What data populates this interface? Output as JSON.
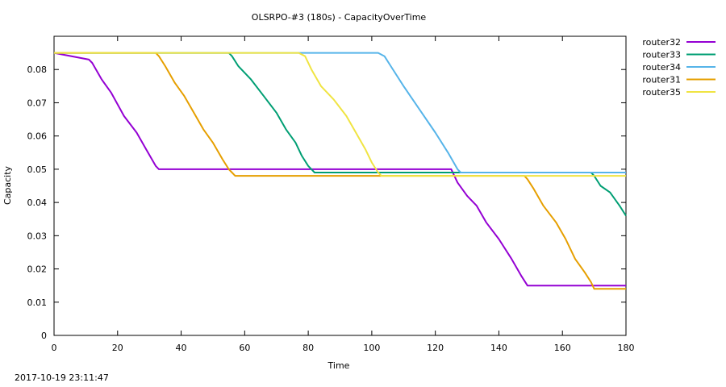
{
  "footer": {
    "timestamp": "2017-10-19 23:11:47"
  },
  "chart_data": {
    "type": "line",
    "title": "OLSRPO-#3 (180s) - CapacityOverTime",
    "xlabel": "Time",
    "ylabel": "Capacity",
    "xlim": [
      0,
      180
    ],
    "ylim": [
      0,
      0.09
    ],
    "xticks": [
      0,
      20,
      40,
      60,
      80,
      100,
      120,
      140,
      160,
      180
    ],
    "yticks": [
      0,
      0.01,
      0.02,
      0.03,
      0.04,
      0.05,
      0.06,
      0.07,
      0.08
    ],
    "ytick_labels": [
      "0",
      "0.01",
      "0.02",
      "0.03",
      "0.04",
      "0.05",
      "0.06",
      "0.07",
      "0.08"
    ],
    "grid": false,
    "legend_position": "outside-top-right",
    "series": [
      {
        "name": "router32",
        "color": "#9400d3",
        "points": [
          [
            0,
            0.085
          ],
          [
            11,
            0.083
          ],
          [
            12,
            0.082
          ],
          [
            15,
            0.077
          ],
          [
            18,
            0.073
          ],
          [
            22,
            0.066
          ],
          [
            26,
            0.061
          ],
          [
            29,
            0.056
          ],
          [
            32,
            0.051
          ],
          [
            33,
            0.05
          ],
          [
            60,
            0.05
          ],
          [
            100,
            0.05
          ],
          [
            125,
            0.05
          ],
          [
            127,
            0.046
          ],
          [
            130,
            0.042
          ],
          [
            133,
            0.039
          ],
          [
            136,
            0.034
          ],
          [
            140,
            0.029
          ],
          [
            144,
            0.023
          ],
          [
            147,
            0.018
          ],
          [
            149,
            0.015
          ],
          [
            165,
            0.015
          ],
          [
            180,
            0.015
          ]
        ]
      },
      {
        "name": "router33",
        "color": "#009e73",
        "points": [
          [
            0,
            0.085
          ],
          [
            30,
            0.085
          ],
          [
            55,
            0.085
          ],
          [
            56,
            0.084
          ],
          [
            58,
            0.081
          ],
          [
            62,
            0.077
          ],
          [
            66,
            0.072
          ],
          [
            70,
            0.067
          ],
          [
            73,
            0.062
          ],
          [
            76,
            0.058
          ],
          [
            78,
            0.054
          ],
          [
            80,
            0.051
          ],
          [
            81,
            0.05
          ],
          [
            82,
            0.049
          ],
          [
            100,
            0.049
          ],
          [
            140,
            0.049
          ],
          [
            169,
            0.049
          ],
          [
            170,
            0.048
          ],
          [
            172,
            0.045
          ],
          [
            175,
            0.043
          ],
          [
            178,
            0.039
          ],
          [
            180,
            0.036
          ]
        ]
      },
      {
        "name": "router34",
        "color": "#56b4e9",
        "points": [
          [
            0,
            0.085
          ],
          [
            50,
            0.085
          ],
          [
            80,
            0.085
          ],
          [
            102,
            0.085
          ],
          [
            104,
            0.084
          ],
          [
            106,
            0.081
          ],
          [
            110,
            0.075
          ],
          [
            115,
            0.068
          ],
          [
            120,
            0.061
          ],
          [
            124,
            0.055
          ],
          [
            127,
            0.05
          ],
          [
            128,
            0.049
          ],
          [
            150,
            0.049
          ],
          [
            180,
            0.049
          ]
        ]
      },
      {
        "name": "router31",
        "color": "#e69f00",
        "points": [
          [
            0,
            0.085
          ],
          [
            32,
            0.085
          ],
          [
            33,
            0.084
          ],
          [
            35,
            0.081
          ],
          [
            38,
            0.076
          ],
          [
            41,
            0.072
          ],
          [
            44,
            0.067
          ],
          [
            47,
            0.062
          ],
          [
            50,
            0.058
          ],
          [
            53,
            0.053
          ],
          [
            55,
            0.05
          ],
          [
            56,
            0.049
          ],
          [
            57,
            0.048
          ],
          [
            80,
            0.048
          ],
          [
            110,
            0.048
          ],
          [
            148,
            0.048
          ],
          [
            149,
            0.047
          ],
          [
            151,
            0.044
          ],
          [
            154,
            0.039
          ],
          [
            158,
            0.034
          ],
          [
            161,
            0.029
          ],
          [
            164,
            0.023
          ],
          [
            167,
            0.019
          ],
          [
            169,
            0.016
          ],
          [
            170,
            0.014
          ],
          [
            180,
            0.014
          ]
        ]
      },
      {
        "name": "router35",
        "color": "#f0e442",
        "points": [
          [
            0,
            0.085
          ],
          [
            40,
            0.085
          ],
          [
            77,
            0.085
          ],
          [
            79,
            0.084
          ],
          [
            81,
            0.08
          ],
          [
            84,
            0.075
          ],
          [
            88,
            0.071
          ],
          [
            92,
            0.066
          ],
          [
            95,
            0.061
          ],
          [
            98,
            0.056
          ],
          [
            100,
            0.052
          ],
          [
            102,
            0.049
          ],
          [
            103,
            0.048
          ],
          [
            130,
            0.048
          ],
          [
            160,
            0.048
          ],
          [
            180,
            0.048
          ]
        ]
      }
    ]
  }
}
